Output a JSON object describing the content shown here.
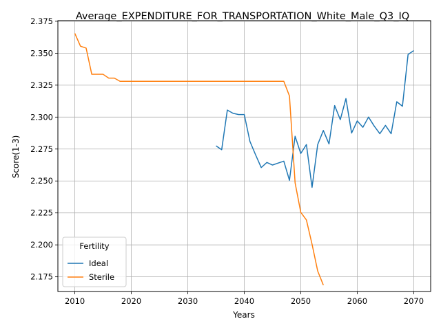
{
  "chart_data": {
    "type": "line",
    "title": "Average_EXPENDITURE_FOR_TRANSPORTATION_White_Male_Q3_IQ",
    "xlabel": "Years",
    "ylabel": "Score(1-3)",
    "xlim": [
      2007,
      2073
    ],
    "ylim": [
      2.1635,
      2.3755
    ],
    "x_ticks": [
      "2010",
      "2020",
      "2030",
      "2040",
      "2050",
      "2060",
      "2070"
    ],
    "y_ticks": [
      "2.175",
      "2.200",
      "2.225",
      "2.250",
      "2.275",
      "2.300",
      "2.325",
      "2.350",
      "2.375"
    ],
    "grid": true,
    "legend": {
      "title": "Fertility",
      "placement": "lower-left"
    },
    "series": [
      {
        "name": "Ideal",
        "color": "#1f77b4",
        "x": [
          2035,
          2036,
          2037,
          2038,
          2039,
          2040,
          2041,
          2042,
          2043,
          2044,
          2045,
          2046,
          2047,
          2048,
          2049,
          2050,
          2051,
          2052,
          2053,
          2054,
          2055,
          2056,
          2057,
          2058,
          2059,
          2060,
          2061,
          2062,
          2063,
          2064,
          2065,
          2066,
          2067,
          2068,
          2069,
          2070
        ],
        "y": [
          2.2775,
          2.2745,
          2.3055,
          2.303,
          2.302,
          2.302,
          2.281,
          2.2705,
          2.2605,
          2.2645,
          2.2625,
          2.264,
          2.2655,
          2.2505,
          2.285,
          2.2715,
          2.2785,
          2.245,
          2.2785,
          2.2895,
          2.279,
          2.309,
          2.298,
          2.3145,
          2.2875,
          2.297,
          2.292,
          2.3,
          2.293,
          2.287,
          2.2935,
          2.287,
          2.312,
          2.3085,
          2.349,
          2.352
        ]
      },
      {
        "name": "Sterile",
        "color": "#ff7f0e",
        "x": [
          2010,
          2011,
          2012,
          2013,
          2014,
          2015,
          2016,
          2017,
          2018,
          2019,
          2020,
          2025,
          2030,
          2035,
          2040,
          2045,
          2047,
          2048,
          2049,
          2050,
          2051,
          2052,
          2053,
          2054
        ],
        "y": [
          2.3655,
          2.3555,
          2.354,
          2.3335,
          2.3335,
          2.3335,
          2.3305,
          2.3305,
          2.328,
          2.328,
          2.328,
          2.328,
          2.328,
          2.328,
          2.328,
          2.328,
          2.328,
          2.3165,
          2.2485,
          2.2255,
          2.2195,
          2.2005,
          2.1795,
          2.1685
        ]
      }
    ]
  }
}
